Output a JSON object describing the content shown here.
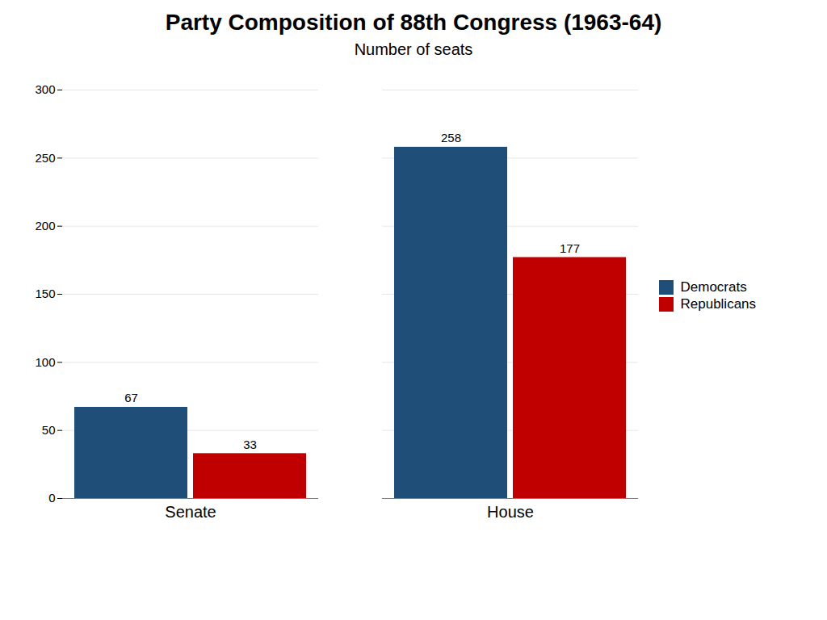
{
  "chart_data": {
    "type": "bar",
    "title": "Party Composition of 88th Congress (1963-64)",
    "subtitle": "Number of seats",
    "categories": [
      "Senate",
      "House"
    ],
    "series": [
      {
        "name": "Democrats",
        "color": "#1F4E79",
        "values": [
          67,
          258
        ]
      },
      {
        "name": "Republicans",
        "color": "#C00000",
        "values": [
          33,
          177
        ]
      }
    ],
    "ylim": [
      0,
      300
    ],
    "yticks": [
      0,
      50,
      100,
      150,
      200,
      250,
      300
    ],
    "grid": true,
    "legend": "right",
    "data_labels": true
  }
}
